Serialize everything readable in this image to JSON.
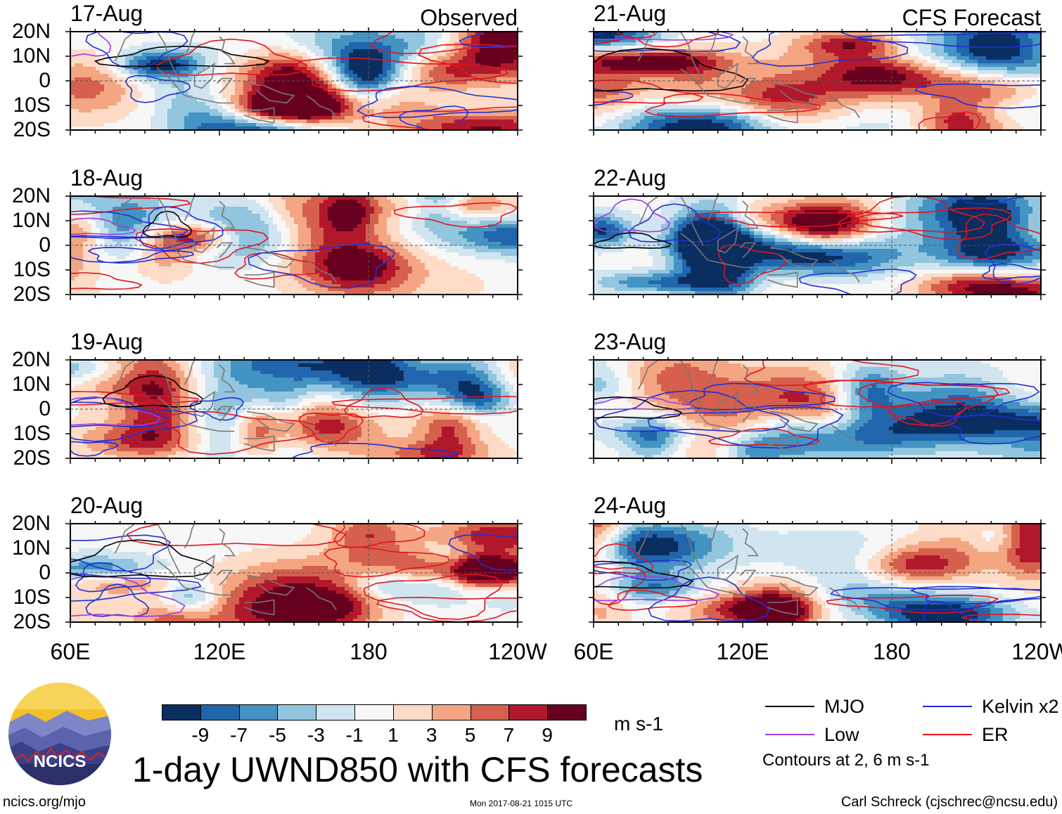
{
  "header": {
    "observed_label": "Observed",
    "forecast_label": "CFS Forecast"
  },
  "panels": [
    {
      "date": "17-Aug",
      "column": "observed"
    },
    {
      "date": "18-Aug",
      "column": "observed"
    },
    {
      "date": "19-Aug",
      "column": "observed"
    },
    {
      "date": "20-Aug",
      "column": "observed"
    },
    {
      "date": "21-Aug",
      "column": "forecast"
    },
    {
      "date": "22-Aug",
      "column": "forecast"
    },
    {
      "date": "23-Aug",
      "column": "forecast"
    },
    {
      "date": "24-Aug",
      "column": "forecast"
    }
  ],
  "chart_data": {
    "type": "heatmap",
    "title": "1-day UWND850 with CFS forecasts",
    "variable": "850 hPa zonal wind anomaly",
    "units": "m s-1",
    "lat_range": [
      -20,
      20
    ],
    "lon_range": [
      60,
      240
    ],
    "lat_ticks": [
      "20N",
      "10N",
      "0",
      "10S",
      "20S"
    ],
    "lon_ticks": [
      "60E",
      "120E",
      "180",
      "120W"
    ],
    "colorbar": {
      "ticks": [
        "-9",
        "-7",
        "-5",
        "-3",
        "-1",
        "1",
        "3",
        "5",
        "7",
        "9"
      ],
      "colors": [
        "#0b2e61",
        "#2166ac",
        "#4393c3",
        "#92c5de",
        "#d1e5f0",
        "#f7f7f7",
        "#fddbc7",
        "#f4a582",
        "#d6604d",
        "#b2182b",
        "#67001f"
      ]
    },
    "legend": [
      {
        "label": "MJO",
        "color": "#000000"
      },
      {
        "label": "Kelvin x2",
        "color": "#1f2fd6"
      },
      {
        "label": "Low",
        "color": "#9a3ee0"
      },
      {
        "label": "ER",
        "color": "#e3141e"
      }
    ],
    "contour_note": "Contours at 2, 6 m s-1"
  },
  "logo": {
    "text": "NCICS"
  },
  "footer": {
    "url": "ncics.org/mjo",
    "timestamp": "Mon 2017-08-21 1015 UTC",
    "author": "Carl Schreck (cjschrec@ncsu.edu)"
  }
}
